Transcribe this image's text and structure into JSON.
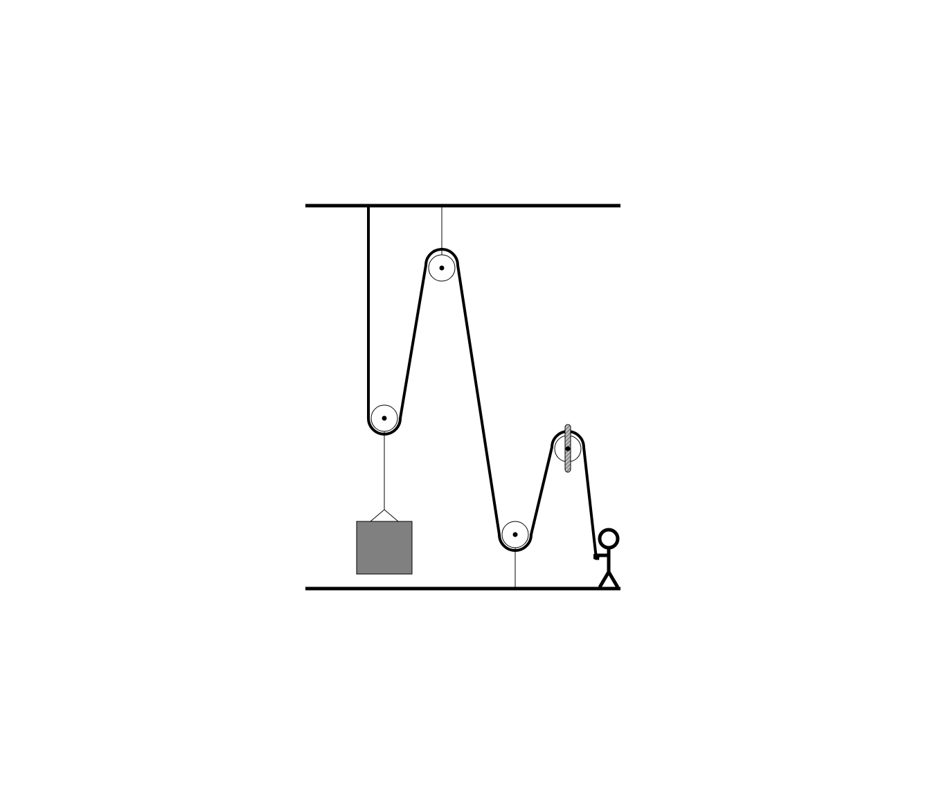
{
  "diagram": {
    "type": "pulley-system",
    "components": {
      "ceiling": "ceiling-beam",
      "floor": "floor-beam",
      "pulleys": [
        {
          "id": "pulley-lower-left",
          "role": "movable",
          "attached_to": "load"
        },
        {
          "id": "pulley-upper",
          "role": "fixed",
          "attached_to": "ceiling"
        },
        {
          "id": "pulley-floor",
          "role": "fixed",
          "attached_to": "floor"
        },
        {
          "id": "pulley-right",
          "role": "redirect",
          "attached_to": "bracket"
        }
      ],
      "load": {
        "color": "#808080"
      },
      "person": "stick-figure-pulling-rope"
    },
    "colors": {
      "line": "#000000",
      "load_fill": "#808080",
      "bracket_fill": "#bbbbbb",
      "background": "#ffffff"
    }
  }
}
